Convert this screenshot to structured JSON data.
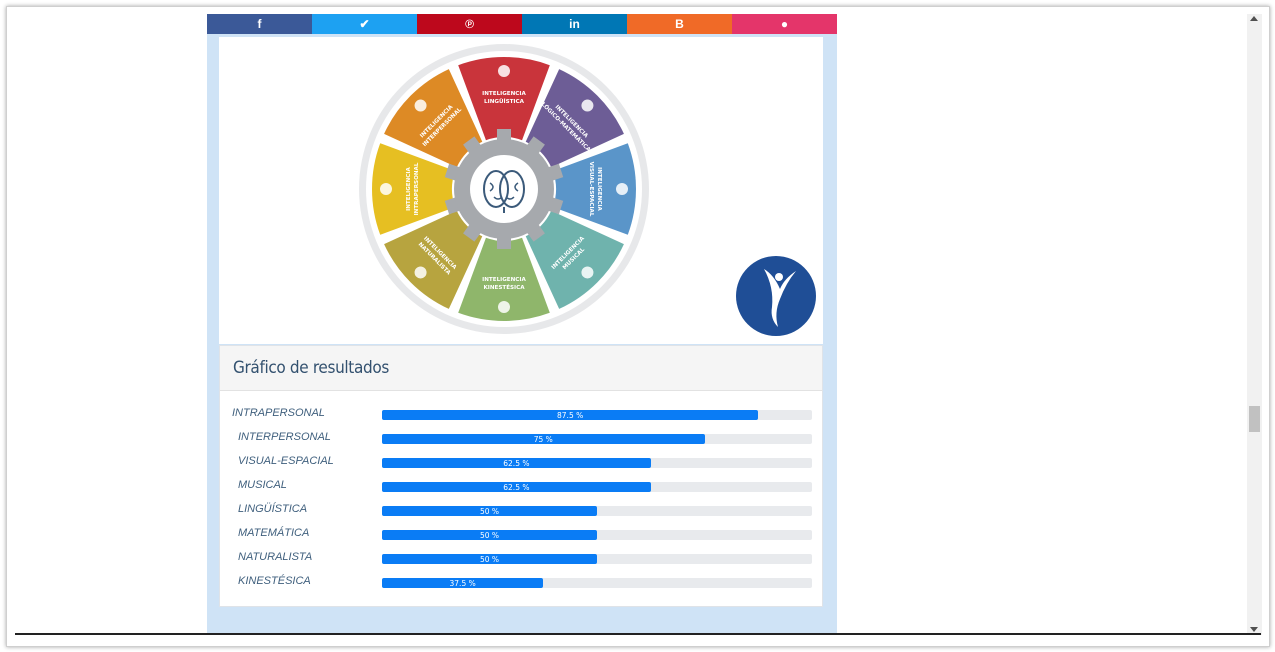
{
  "share_buttons": [
    {
      "name": "facebook",
      "glyph": "f",
      "color": "#3b5998"
    },
    {
      "name": "twitter",
      "glyph": "✔",
      "color": "#1da1f2"
    },
    {
      "name": "pinterest",
      "glyph": "℗",
      "color": "#bd081c"
    },
    {
      "name": "linkedin",
      "glyph": "in",
      "color": "#0077b5"
    },
    {
      "name": "blogger",
      "glyph": "B",
      "color": "#f06a27"
    },
    {
      "name": "comment",
      "glyph": "●",
      "color": "#e4356a"
    }
  ],
  "wheel": {
    "segments": [
      {
        "lines": [
          "INTELIGENCIA",
          "LINGÜÍSTICA"
        ],
        "color": "#c9343b"
      },
      {
        "lines": [
          "INTELIGENCIA",
          "LÓGICO-MATEMÁTICA"
        ],
        "color": "#6d5d96"
      },
      {
        "lines": [
          "INTELIGENCIA",
          "VISUAL-ESPACIAL"
        ],
        "color": "#5a95c9"
      },
      {
        "lines": [
          "INTELIGENCIA",
          "MUSICAL"
        ],
        "color": "#6fb3ad"
      },
      {
        "lines": [
          "INTELIGENCIA",
          "KINESTÉSICA"
        ],
        "color": "#8fb66b"
      },
      {
        "lines": [
          "INTELIGENCIA",
          "NATURALISTA"
        ],
        "color": "#b7a43f"
      },
      {
        "lines": [
          "INTELIGENCIA",
          "INTRAPERSONAL"
        ],
        "color": "#e6bf22"
      },
      {
        "lines": [
          "INTELIGENCIA",
          "INTERPERSONAL"
        ],
        "color": "#dd8a25"
      }
    ]
  },
  "results": {
    "title": "Gráfico de resultados",
    "rows": [
      {
        "label": "INTRAPERSONAL",
        "value": 87.5,
        "text": "87.5 %"
      },
      {
        "label": "INTERPERSONAL",
        "value": 75,
        "text": "75 %"
      },
      {
        "label": "VISUAL-ESPACIAL",
        "value": 62.5,
        "text": "62.5 %"
      },
      {
        "label": "MUSICAL",
        "value": 62.5,
        "text": "62.5 %"
      },
      {
        "label": "LINGÜÍSTICA",
        "value": 50,
        "text": "50 %"
      },
      {
        "label": "MATEMÁTICA",
        "value": 50,
        "text": "50 %"
      },
      {
        "label": "NATURALISTA",
        "value": 50,
        "text": "50 %"
      },
      {
        "label": "KINESTÉSICA",
        "value": 37.5,
        "text": "37.5 %"
      }
    ]
  }
}
